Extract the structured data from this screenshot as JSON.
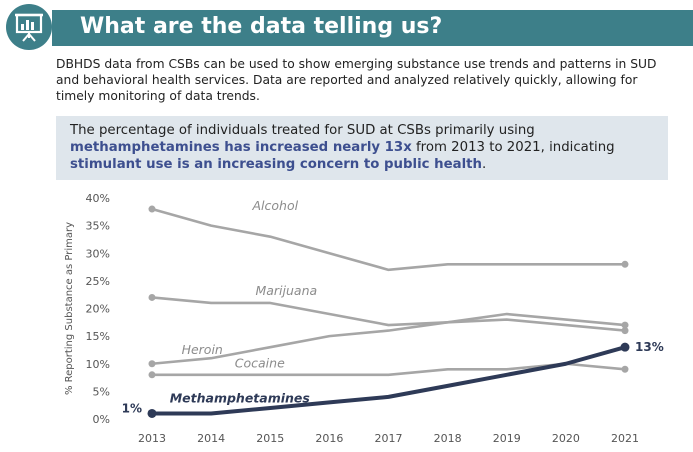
{
  "header": {
    "title": "What are the data telling us?",
    "icon": "presentation-chart-icon",
    "color": "#3d7f89"
  },
  "intro": "DBHDS data from CSBs can be used to show emerging substance use trends and patterns in SUD and behavioral health services. Data are reported and analyzed relatively quickly, allowing for timely monitoring of data trends.",
  "callout": {
    "part1": "The percentage of individuals treated for SUD at CSBs primarily using ",
    "highlight1": "methamphetamines has increased nearly 13x",
    "part2": " from 2013 to 2021, indicating ",
    "highlight2": "stimulant use is an increasing concern to public health",
    "part3": "."
  },
  "chart_data": {
    "type": "line",
    "ylabel": "% Reporting Substance as Primary",
    "ylim": [
      0,
      40
    ],
    "yticks": [
      "0%",
      "5%",
      "10%",
      "15%",
      "20%",
      "25%",
      "30%",
      "35%",
      "40%"
    ],
    "x": [
      2013,
      2014,
      2015,
      2016,
      2017,
      2018,
      2019,
      2020,
      2021
    ],
    "series": [
      {
        "name": "Alcohol",
        "values": [
          38,
          35,
          33,
          30,
          27,
          28,
          28,
          28,
          28
        ],
        "color": "#a6a6a6"
      },
      {
        "name": "Marijuana",
        "values": [
          22,
          21,
          21,
          19,
          17,
          17.5,
          18,
          17,
          16
        ],
        "color": "#a6a6a6"
      },
      {
        "name": "Heroin",
        "values": [
          10,
          11,
          13,
          15,
          16,
          17.5,
          19,
          18,
          17
        ],
        "color": "#a6a6a6"
      },
      {
        "name": "Cocaine",
        "values": [
          8,
          8,
          8,
          8,
          8,
          9,
          9,
          10,
          9
        ],
        "color": "#a6a6a6"
      },
      {
        "name": "Methamphetamines",
        "values": [
          1,
          1,
          2,
          3,
          4,
          6,
          8,
          10,
          13
        ],
        "color": "#2e3a57"
      }
    ],
    "annotations": {
      "start": "1%",
      "end": "13%"
    },
    "grid": false
  }
}
